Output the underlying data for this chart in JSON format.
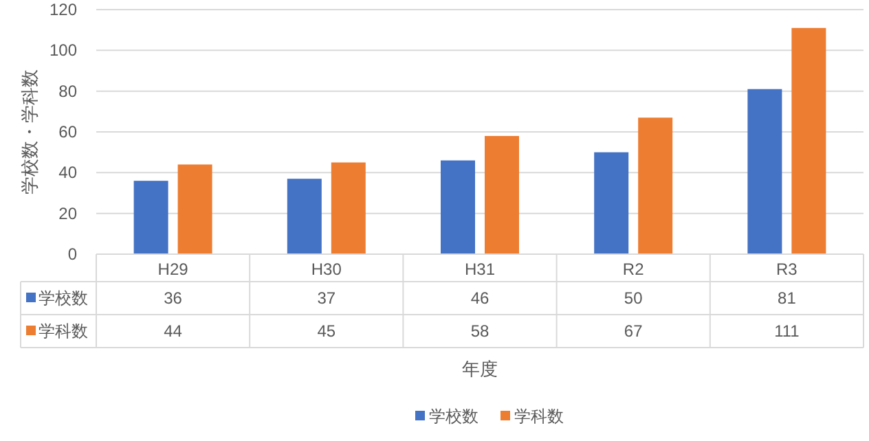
{
  "chart_data": {
    "type": "bar",
    "ylabel": "学校数・学科数",
    "xlabel": "年度",
    "categories": [
      "H29",
      "H30",
      "H31",
      "R2",
      "R3"
    ],
    "series": [
      {
        "name": "学校数",
        "color": "#4472c4",
        "values": [
          36,
          37,
          46,
          50,
          81
        ]
      },
      {
        "name": "学科数",
        "color": "#ed7d31",
        "values": [
          44,
          45,
          58,
          67,
          111
        ]
      }
    ],
    "ylim": [
      0,
      120
    ],
    "yticks": [
      0,
      20,
      40,
      60,
      80,
      100,
      120
    ],
    "grid": "y",
    "legend": "bottom",
    "data_labels": true
  }
}
